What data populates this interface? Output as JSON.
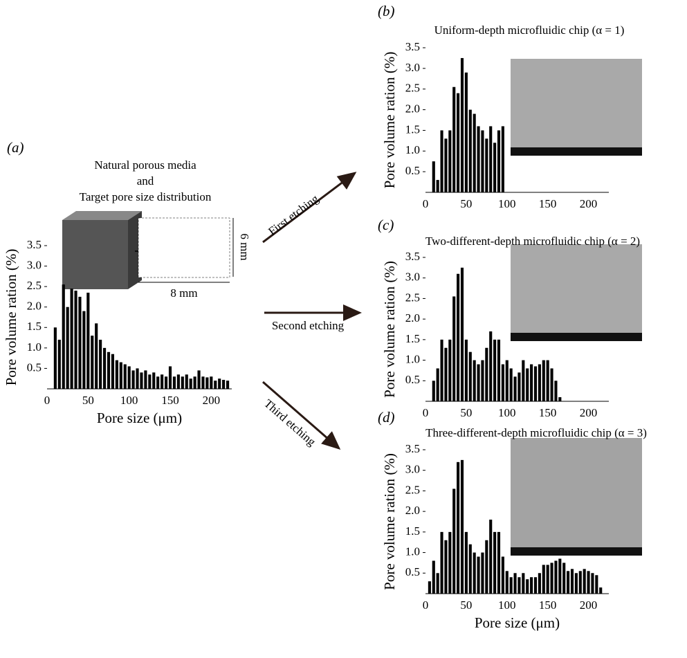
{
  "chart_data": [
    {
      "type": "bar",
      "panel_label": "(a)",
      "ylabel": "Pore volume ration (%)",
      "xlabel": "Pore size (μm)",
      "color": "#000000",
      "x": [
        10,
        15,
        20,
        25,
        30,
        35,
        40,
        45,
        50,
        55,
        60,
        65,
        70,
        75,
        80,
        85,
        90,
        95,
        100,
        105,
        110,
        115,
        120,
        125,
        130,
        135,
        140,
        145,
        150,
        155,
        160,
        165,
        170,
        175,
        180,
        185,
        190,
        195,
        200,
        205,
        210,
        215,
        220
      ],
      "values": [
        1.5,
        1.2,
        2.55,
        2.0,
        2.45,
        2.4,
        2.25,
        1.9,
        2.35,
        1.3,
        1.6,
        1.2,
        1.0,
        0.9,
        0.85,
        0.7,
        0.65,
        0.6,
        0.55,
        0.45,
        0.5,
        0.4,
        0.45,
        0.35,
        0.4,
        0.3,
        0.35,
        0.3,
        0.55,
        0.3,
        0.35,
        0.3,
        0.35,
        0.25,
        0.3,
        0.45,
        0.3,
        0.28,
        0.3,
        0.2,
        0.25,
        0.22,
        0.2
      ],
      "xlim": [
        0,
        225
      ],
      "ylim": [
        0,
        3.5
      ],
      "xticks": [
        0,
        50,
        100,
        150,
        200
      ],
      "yticks": [
        0.5,
        {
          "value": 1,
          "label": "1.0"
        },
        1.5,
        {
          "value": 2,
          "label": "2.0"
        },
        2.5,
        {
          "value": 3,
          "label": "3.0"
        },
        3.5
      ]
    },
    {
      "type": "bar",
      "panel_label": "(b)",
      "title": "Uniform-depth microfluidic chip (α = 1)",
      "ylabel": "Pore volume ration (%)",
      "color": "#000000",
      "x": [
        10,
        15,
        20,
        25,
        30,
        35,
        40,
        45,
        50,
        55,
        60,
        65,
        70,
        75,
        80,
        85,
        90,
        95
      ],
      "values": [
        0.75,
        0.3,
        1.5,
        1.3,
        1.5,
        2.55,
        2.4,
        3.25,
        2.9,
        2.0,
        1.9,
        1.6,
        1.5,
        1.3,
        1.6,
        1.2,
        1.5,
        1.6
      ],
      "xlim": [
        0,
        225
      ],
      "ylim": [
        0,
        3.5
      ],
      "xticks": [
        0,
        50,
        100,
        150,
        200
      ],
      "yticks": [
        0.5,
        {
          "value": 1,
          "label": "1.0"
        },
        1.5,
        {
          "value": 2,
          "label": "2.0"
        },
        2.5,
        {
          "value": 3,
          "label": "3.0"
        },
        3.5
      ]
    },
    {
      "type": "bar",
      "panel_label": "(c)",
      "title": "Two-different-depth microfluidic chip (α = 2)",
      "ylabel": "Pore volume ration (%)",
      "color": "#000000",
      "x": [
        10,
        15,
        20,
        25,
        30,
        35,
        40,
        45,
        50,
        55,
        60,
        65,
        70,
        75,
        80,
        85,
        90,
        95,
        100,
        105,
        110,
        115,
        120,
        125,
        130,
        135,
        140,
        145,
        150,
        155,
        160,
        165
      ],
      "values": [
        0.5,
        0.8,
        1.5,
        1.3,
        1.5,
        2.55,
        3.1,
        3.25,
        1.5,
        1.2,
        1.0,
        0.9,
        1.0,
        1.3,
        1.7,
        1.5,
        1.5,
        0.9,
        1.0,
        0.8,
        0.6,
        0.7,
        1.0,
        0.8,
        0.9,
        0.85,
        0.9,
        1.0,
        1.0,
        0.8,
        0.5,
        0.1
      ],
      "xlim": [
        0,
        225
      ],
      "ylim": [
        0,
        3.5
      ],
      "xticks": [
        0,
        50,
        100,
        150,
        200
      ],
      "yticks": [
        0.5,
        {
          "value": 1,
          "label": "1.0"
        },
        1.5,
        {
          "value": 2,
          "label": "2.0"
        },
        2.5,
        {
          "value": 3,
          "label": "3.0"
        },
        3.5
      ]
    },
    {
      "type": "bar",
      "panel_label": "(d)",
      "title": "Three-different-depth microfluidic chip (α = 3)",
      "ylabel": "Pore volume ration (%)",
      "xlabel": "Pore size (μm)",
      "color": "#000000",
      "x": [
        5,
        10,
        15,
        20,
        25,
        30,
        35,
        40,
        45,
        50,
        55,
        60,
        65,
        70,
        75,
        80,
        85,
        90,
        95,
        100,
        105,
        110,
        115,
        120,
        125,
        130,
        135,
        140,
        145,
        150,
        155,
        160,
        165,
        170,
        175,
        180,
        185,
        190,
        195,
        200,
        205,
        210,
        215
      ],
      "values": [
        0.3,
        0.8,
        0.5,
        1.5,
        1.3,
        1.5,
        2.55,
        3.2,
        3.25,
        1.5,
        1.2,
        1.0,
        0.9,
        1.0,
        1.3,
        1.8,
        1.5,
        1.5,
        0.9,
        0.55,
        0.4,
        0.5,
        0.4,
        0.5,
        0.35,
        0.4,
        0.4,
        0.5,
        0.7,
        0.7,
        0.75,
        0.8,
        0.85,
        0.75,
        0.55,
        0.6,
        0.5,
        0.55,
        0.6,
        0.55,
        0.5,
        0.45,
        0.15
      ],
      "xlim": [
        0,
        225
      ],
      "ylim": [
        0,
        3.5
      ],
      "xticks": [
        0,
        50,
        100,
        150,
        200
      ],
      "yticks": [
        0.5,
        {
          "value": 1,
          "label": "1.0"
        },
        1.5,
        {
          "value": 2,
          "label": "2.0"
        },
        2.5,
        {
          "value": 3,
          "label": "3.0"
        },
        3.5
      ]
    }
  ],
  "annotations": {
    "line1": "Natural porous media",
    "line2": "and",
    "line3": "Target pore size distribution",
    "height": "6 mm",
    "width": "8 mm",
    "first": "First etching",
    "second": "Second etching",
    "third": "Third etching"
  }
}
